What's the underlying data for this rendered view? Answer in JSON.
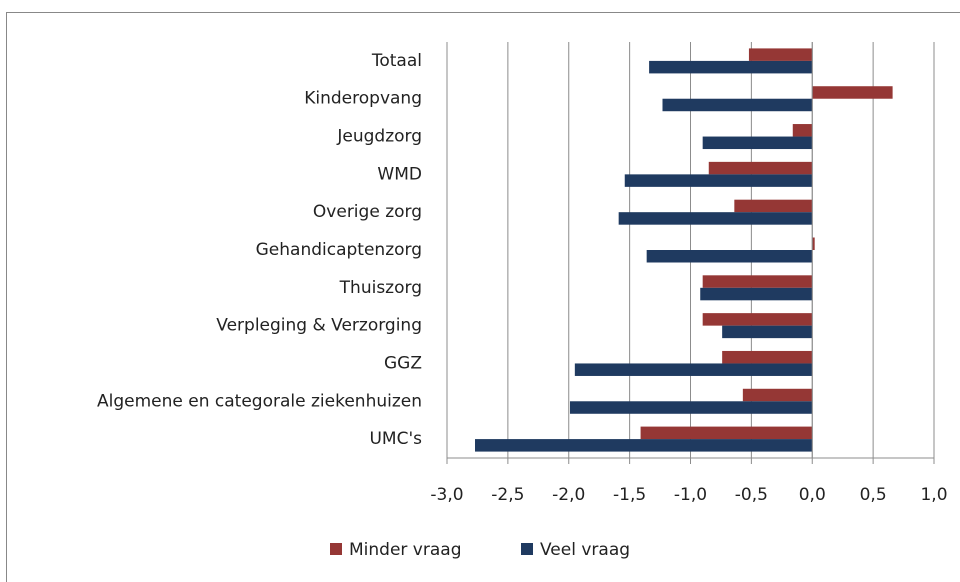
{
  "chart_data": {
    "type": "hbar",
    "categories": [
      "Totaal",
      "Kinderopvang",
      "Jeugdzorg",
      "WMD",
      "Overige zorg",
      "Gehandicaptenzorg",
      "Thuiszorg",
      "Verpleging & Verzorging",
      "GGZ",
      "Algemene en categorale ziekenhuizen",
      "UMC's"
    ],
    "series": [
      {
        "name": "Minder vraag",
        "color": "#953735",
        "values": [
          -0.52,
          0.66,
          -0.16,
          -0.85,
          -0.64,
          0.02,
          -0.9,
          -0.9,
          -0.74,
          -0.57,
          -1.41
        ]
      },
      {
        "name": "Veel vraag",
        "color": "#1f3a60",
        "values": [
          -1.34,
          -1.23,
          -0.9,
          -1.54,
          -1.59,
          -1.36,
          -0.92,
          -0.74,
          -1.95,
          -1.99,
          -2.77
        ]
      }
    ],
    "xlim": [
      -3,
      1
    ],
    "xticks": [
      {
        "value": -3,
        "label": "-3,0"
      },
      {
        "value": -2.5,
        "label": "-2,5"
      },
      {
        "value": -2,
        "label": "-2,0"
      },
      {
        "value": -1.5,
        "label": "-1,5"
      },
      {
        "value": -1,
        "label": "-1,0"
      },
      {
        "value": -0.5,
        "label": "-0,5"
      },
      {
        "value": 0,
        "label": "0,0"
      },
      {
        "value": 0.5,
        "label": "0,5"
      },
      {
        "value": 1,
        "label": "1,0"
      }
    ],
    "grid": true,
    "legend": "bottom"
  }
}
